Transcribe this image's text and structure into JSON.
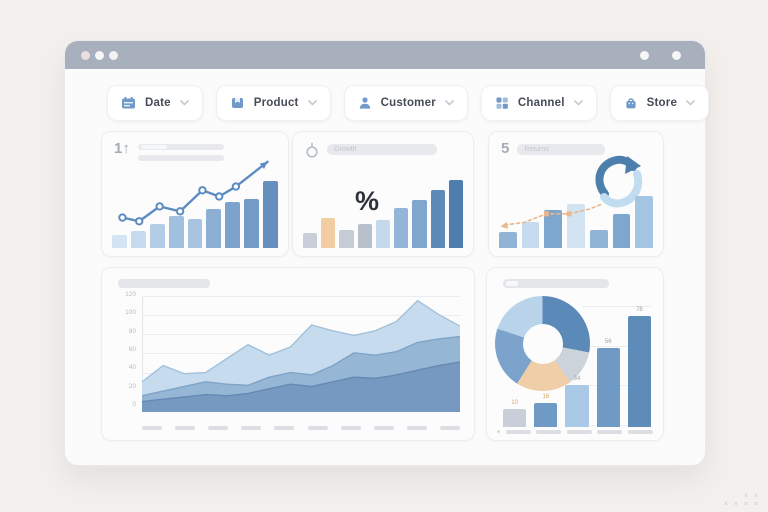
{
  "window": {
    "titlebar_color": "#a8b0bd",
    "left_dots": [
      "#ecdfdf",
      "#f7f7f7",
      "#f2f2f2"
    ],
    "right_dots": [
      "#f6f6f6",
      "#f6f6f6"
    ]
  },
  "filters": [
    {
      "label": "Date",
      "icon": "calendar-icon"
    },
    {
      "label": "Product",
      "icon": "product-icon"
    },
    {
      "label": "Customer",
      "icon": "customer-icon"
    },
    {
      "label": "Channel",
      "icon": "channel-icon"
    },
    {
      "label": "Store",
      "icon": "store-icon"
    }
  ],
  "cards": {
    "trend": {
      "header_text": "1↑"
    },
    "growth": {
      "pill_text": "Growth",
      "percent_symbol": "%"
    },
    "returns": {
      "header_text": "5",
      "pill_text": "Returns"
    },
    "breakdown": {}
  },
  "watermark": {
    "line1": "× ×",
    "line2": "× × × ×"
  },
  "colors": {
    "accent_blue": "#6f9ac9",
    "peach": "#f0cfa8",
    "titlebar": "#a8b0bd"
  },
  "chart_data": [
    {
      "id": "trend",
      "type": "bar",
      "values": [
        18,
        24,
        33,
        44,
        40,
        54,
        64,
        68,
        93
      ],
      "colors": [
        "#d4e4f3",
        "#c7dbef",
        "#b3cde7",
        "#a1bfde",
        "#a8c4e1",
        "#8cafd3",
        "#7ba3cb",
        "#739bc5",
        "#6590bd"
      ],
      "line": {
        "color": "#5d8cc2",
        "width": 2.4,
        "marker": "circle",
        "points": [
          [
            11,
            69
          ],
          [
            20,
            72
          ],
          [
            31,
            60
          ],
          [
            42,
            64
          ],
          [
            54,
            47
          ],
          [
            63,
            52
          ],
          [
            72,
            44
          ]
        ],
        "arrow_to": [
          89,
          24
        ]
      }
    },
    {
      "id": "growth",
      "type": "bar",
      "values": [
        21,
        42,
        25,
        33,
        39,
        56,
        67,
        81,
        94
      ],
      "colors": [
        "#c9cfd8",
        "#f3cda2",
        "#c6ccd5",
        "#b7c0cb",
        "#c5d9ec",
        "#93b6d8",
        "#7ea6ce",
        "#5d8ab8",
        "#4f7dae"
      ]
    },
    {
      "id": "returns",
      "type": "bar",
      "values": [
        25,
        41,
        59,
        69,
        28,
        53,
        81
      ],
      "colors": [
        "#8fb4d6",
        "#c6dbee",
        "#7ea7cf",
        "#d2e3f2",
        "#8fb4d6",
        "#7ea7cf",
        "#a5c6e2"
      ],
      "line": {
        "color": "#e9b88e",
        "width": 1.6,
        "dashed": true,
        "arrow": "start",
        "points": [
          [
            9,
            75
          ],
          [
            20,
            73
          ],
          [
            33,
            66
          ],
          [
            46,
            66
          ],
          [
            58,
            62
          ],
          [
            65,
            58
          ]
        ],
        "square_markers": [
          2,
          3
        ]
      }
    },
    {
      "id": "volume",
      "type": "area",
      "y_ticks": [
        "120",
        "100",
        "80",
        "60",
        "40",
        "20",
        "0"
      ],
      "x_tick_count": 10,
      "series": [
        {
          "name": "layer-top",
          "color": "#c6dcee",
          "stroke": "#a2c0da",
          "values": [
            26,
            40,
            33,
            34,
            46,
            58,
            49,
            56,
            75,
            70,
            66,
            70,
            78,
            96,
            84,
            74
          ]
        },
        {
          "name": "layer-middle",
          "color": "#96b6d5",
          "stroke": "#7fa3c6",
          "values": [
            14,
            18,
            22,
            26,
            24,
            23,
            30,
            34,
            32,
            40,
            51,
            49,
            52,
            60,
            63,
            65
          ]
        },
        {
          "name": "layer-bottom",
          "color": "#7599c1",
          "stroke": "#6689b3",
          "values": [
            9,
            11,
            13,
            15,
            14,
            16,
            20,
            24,
            22,
            26,
            30,
            29,
            32,
            36,
            40,
            43
          ]
        }
      ]
    },
    {
      "id": "breakdown",
      "type": "donut+bar",
      "donut": {
        "segments": [
          {
            "name": "segment-1",
            "color": "#5b89b8",
            "value": 28
          },
          {
            "name": "segment-2",
            "color": "#ccd3db",
            "value": 12
          },
          {
            "name": "segment-3",
            "color": "#f0cfa8",
            "value": 19
          },
          {
            "name": "segment-4",
            "color": "#7ba3cb",
            "value": 21
          },
          {
            "name": "segment-5",
            "color": "#b9d4ea",
            "value": 20
          }
        ]
      },
      "bars": {
        "values": [
          15,
          20,
          35,
          66,
          93
        ],
        "labels": [
          "10",
          "16",
          "34",
          "56",
          "78"
        ],
        "label_colors": [
          "#d9a468",
          "#d9a468",
          "#9aa1ab",
          "#9aa1ab",
          "#9aa1ab"
        ],
        "colors": [
          "#c8cfd8",
          "#6f9ac6",
          "#a9c9e6",
          "#6f9ac6",
          "#5d8cba"
        ]
      }
    }
  ]
}
